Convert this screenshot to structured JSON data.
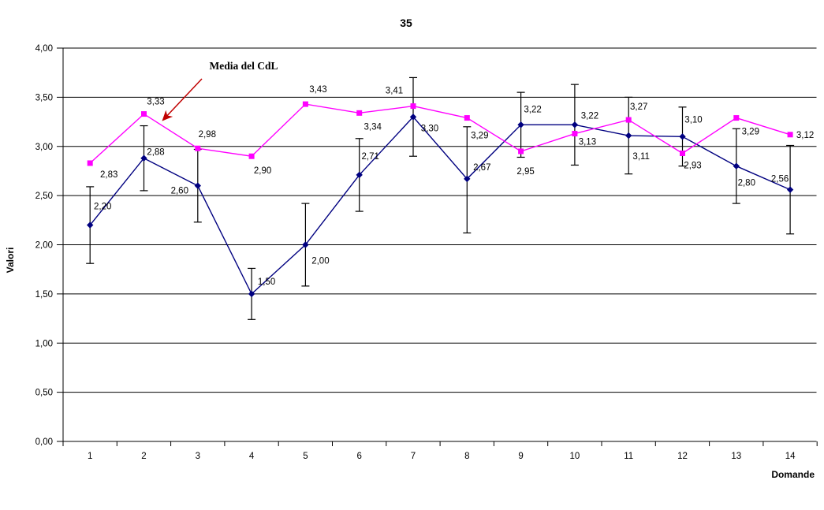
{
  "chart_data": {
    "type": "line",
    "title": "35",
    "xlabel": "Domande",
    "ylabel": "Valori",
    "ylim": [
      0,
      4
    ],
    "grid": "horizontal",
    "legend_position": "none",
    "background": "#ffffff",
    "axis_color": "#000000",
    "categories": [
      "1",
      "2",
      "3",
      "4",
      "5",
      "6",
      "7",
      "8",
      "9",
      "10",
      "11",
      "12",
      "13",
      "14"
    ],
    "ytick_values": [
      4.0,
      3.5,
      3.0,
      2.5,
      2.0,
      1.5,
      1.0,
      0.5,
      0.0
    ],
    "ytick_labels": [
      "4,00",
      "3,50",
      "3,00",
      "2,50",
      "2,00",
      "1,50",
      "1,00",
      "0,50",
      "0,00"
    ],
    "annotation": {
      "text": "Media del CdL",
      "arrow_color": "#c00000",
      "points_to": "magenta series between x=2 and x=3"
    },
    "series": [
      {
        "id": "course-series",
        "color": "#000080",
        "marker": "diamond",
        "has_error_bars": true,
        "error_bar_color": "#000000",
        "values": [
          2.2,
          2.88,
          2.6,
          1.5,
          2.0,
          2.71,
          3.3,
          2.67,
          3.22,
          3.22,
          3.11,
          3.1,
          2.8,
          2.56
        ],
        "labels": [
          "2,20",
          "2,88",
          "2,60",
          "1,50",
          "2,00",
          "2,71",
          "3,30",
          "2,67",
          "3,22",
          "3,22",
          "3,11",
          "3,10",
          "2,80",
          "2,56"
        ],
        "error_low": [
          1.81,
          2.55,
          2.23,
          1.24,
          1.58,
          2.34,
          2.9,
          2.12,
          2.89,
          2.81,
          2.72,
          2.8,
          2.42,
          2.11
        ],
        "error_high": [
          2.59,
          3.21,
          2.97,
          1.76,
          2.42,
          3.08,
          3.7,
          3.2,
          3.55,
          3.63,
          3.5,
          3.4,
          3.18,
          3.01
        ],
        "label_offsets": [
          [
            16,
            -24
          ],
          [
            15,
            -8
          ],
          [
            -23,
            6
          ],
          [
            19,
            -16
          ],
          [
            19,
            20
          ],
          [
            14,
            -24
          ],
          [
            21,
            14
          ],
          [
            19,
            -15
          ],
          [
            15,
            -20
          ],
          [
            19,
            -12
          ],
          [
            16,
            26
          ],
          [
            14,
            -22
          ],
          [
            13,
            21
          ],
          [
            -13,
            -14
          ]
        ]
      },
      {
        "id": "cdl-average-series",
        "color": "#ff00ff",
        "marker": "square",
        "has_error_bars": false,
        "values": [
          2.83,
          3.33,
          2.98,
          2.9,
          3.43,
          3.34,
          3.41,
          3.29,
          2.95,
          3.13,
          3.27,
          2.93,
          3.29,
          3.12
        ],
        "labels": [
          "2,83",
          "3,33",
          "2,98",
          "2,90",
          "3,43",
          "3,34",
          "3,41",
          "3,29",
          "2,95",
          "3,13",
          "3,27",
          "2,93",
          "3,29",
          "3,12"
        ],
        "label_offsets": [
          [
            24,
            14
          ],
          [
            15,
            -16
          ],
          [
            12,
            -18
          ],
          [
            14,
            18
          ],
          [
            16,
            -19
          ],
          [
            17,
            17
          ],
          [
            -24,
            -20
          ],
          [
            16,
            22
          ],
          [
            6,
            25
          ],
          [
            16,
            10
          ],
          [
            13,
            -17
          ],
          [
            13,
            15
          ],
          [
            18,
            17
          ],
          [
            19,
            0
          ]
        ]
      }
    ]
  }
}
